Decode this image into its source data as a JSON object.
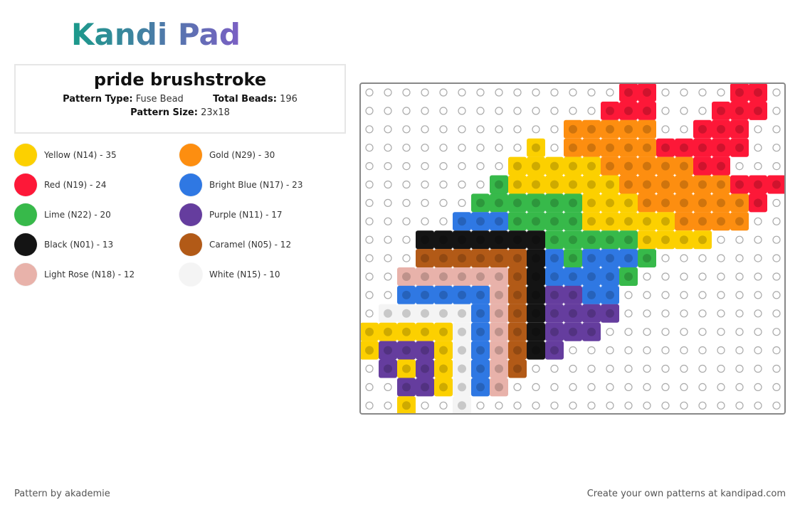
{
  "logo": "Kandi Pad",
  "header": {
    "title": "pride brushstroke",
    "pattern_type_label": "Pattern Type:",
    "pattern_type": "Fuse Bead",
    "total_beads_label": "Total Beads:",
    "total_beads": "196",
    "pattern_size_label": "Pattern Size:",
    "pattern_size": "23x18"
  },
  "legend": [
    {
      "label": "Yellow (N14) - 35",
      "color": "#fcd000"
    },
    {
      "label": "Gold (N29) - 30",
      "color": "#fd8e10"
    },
    {
      "label": "Red (N19) - 24",
      "color": "#fd1838"
    },
    {
      "label": "Bright Blue (N17) - 23",
      "color": "#2f78e3"
    },
    {
      "label": "Lime (N22) - 20",
      "color": "#37b94a"
    },
    {
      "label": "Purple (N11) - 17",
      "color": "#653d9e"
    },
    {
      "label": "Black (N01) - 13",
      "color": "#141414"
    },
    {
      "label": "Caramel (N05) - 12",
      "color": "#b25a17"
    },
    {
      "label": "Light Rose (N18) - 12",
      "color": "#e8b2aa"
    },
    {
      "label": "White (N15) - 10",
      "color": "#f4f4f4"
    }
  ],
  "footer": {
    "credit": "Pattern by akademie",
    "cta": "Create your own patterns at kandipad.com"
  }
}
